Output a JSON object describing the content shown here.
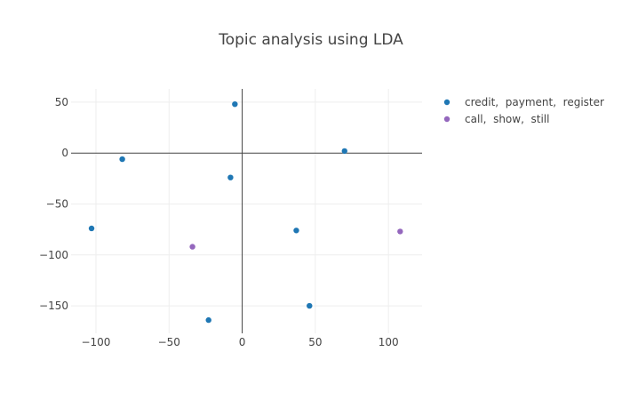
{
  "chart_data": {
    "type": "scatter",
    "title": "Topic analysis using LDA",
    "xlabel": "",
    "ylabel": "",
    "xlim": [
      -117,
      123
    ],
    "ylim": [
      -177,
      63
    ],
    "x_ticks": [
      -100,
      -50,
      0,
      50,
      100
    ],
    "y_ticks": [
      50,
      0,
      -50,
      -100,
      -150
    ],
    "x_tick_labels": [
      "−100",
      "−50",
      "0",
      "50",
      "100"
    ],
    "y_tick_labels": [
      "50",
      "0",
      "−50",
      "−100",
      "−150"
    ],
    "grid": true,
    "zero_lines": true,
    "legend_position": "top-right",
    "series": [
      {
        "name": "credit,  payment,  register",
        "color": "#1f77b4",
        "points": [
          {
            "x": -5,
            "y": 48
          },
          {
            "x": -82,
            "y": -6
          },
          {
            "x": 70,
            "y": 2
          },
          {
            "x": -8,
            "y": -24
          },
          {
            "x": -103,
            "y": -74
          },
          {
            "x": 37,
            "y": -76
          },
          {
            "x": 46,
            "y": -150
          },
          {
            "x": -23,
            "y": -164
          }
        ]
      },
      {
        "name": "call,  show,  still",
        "color": "#9467bd",
        "points": [
          {
            "x": -34,
            "y": -92
          },
          {
            "x": 108,
            "y": -77
          }
        ]
      }
    ]
  }
}
